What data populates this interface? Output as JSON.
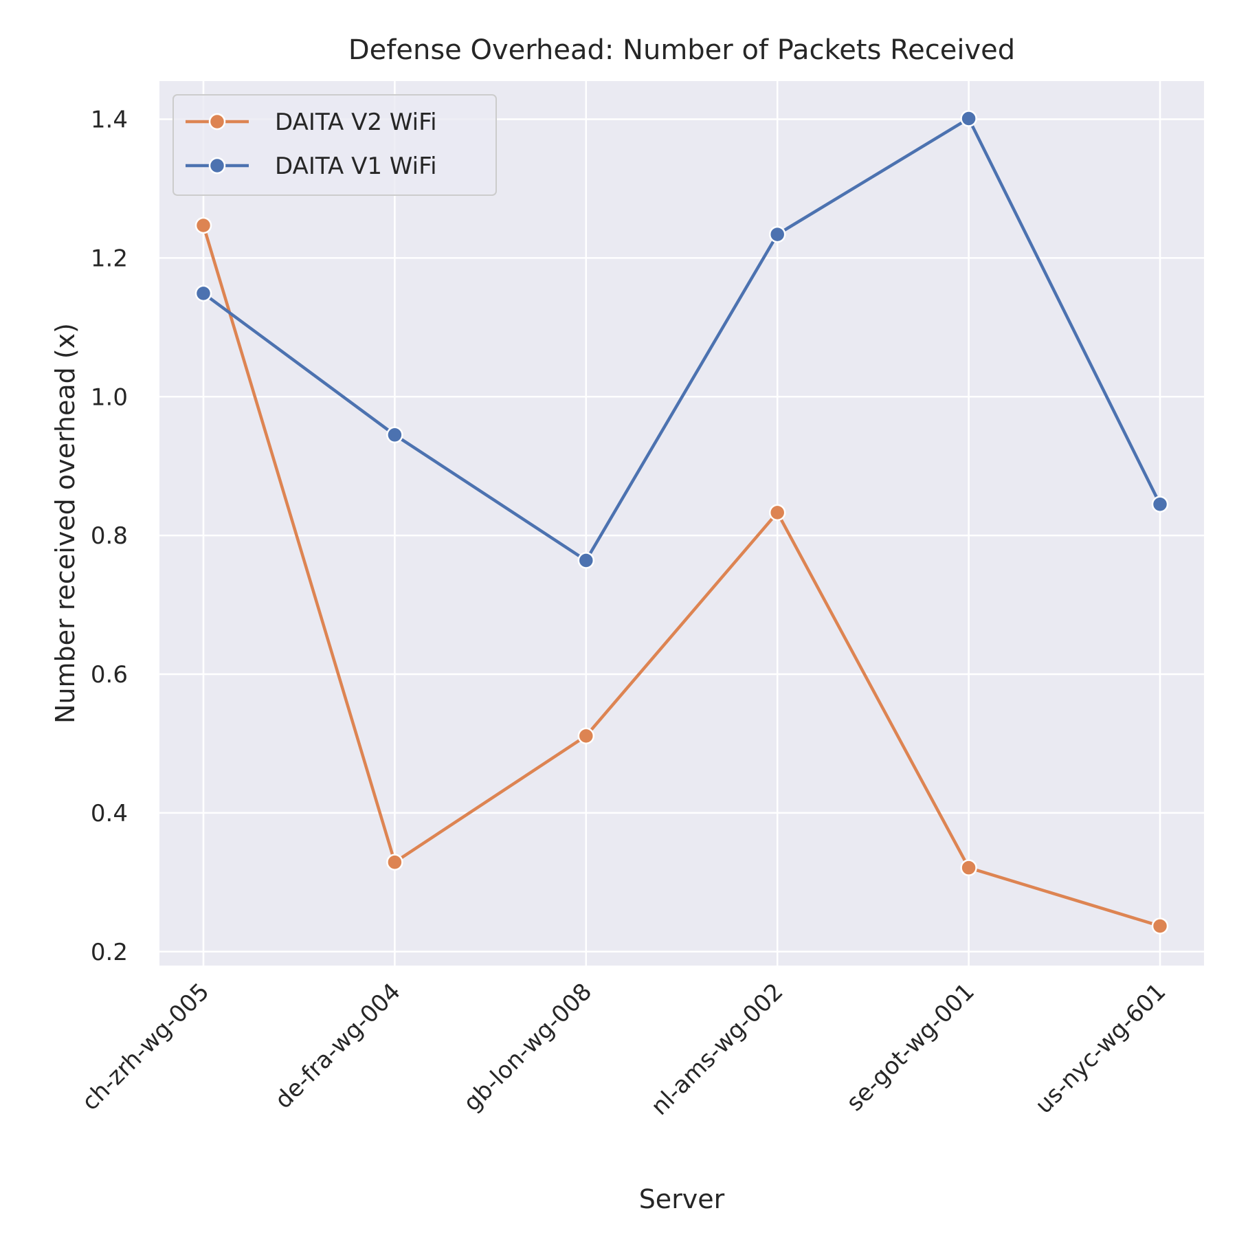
{
  "chart_data": {
    "type": "line",
    "title": "Defense Overhead: Number of Packets Received",
    "xlabel": "Server",
    "ylabel": "Number received overhead (x)",
    "categories": [
      "ch-zrh-wg-005",
      "de-fra-wg-004",
      "gb-lon-wg-008",
      "nl-ams-wg-002",
      "se-got-wg-001",
      "us-nyc-wg-601"
    ],
    "ylim": [
      0.18,
      1.455
    ],
    "yticks": [
      0.2,
      0.4,
      0.6,
      0.8,
      1.0,
      1.2,
      1.4
    ],
    "grid": true,
    "legend_position": "top-left",
    "series": [
      {
        "name": "DAITA V2 WiFi",
        "color": "#dd8452",
        "values": [
          1.247,
          0.329,
          0.511,
          0.833,
          0.321,
          0.237
        ]
      },
      {
        "name": "DAITA V1 WiFi",
        "color": "#4c72b0",
        "values": [
          1.149,
          0.945,
          0.764,
          1.234,
          1.401,
          0.845
        ]
      }
    ]
  }
}
